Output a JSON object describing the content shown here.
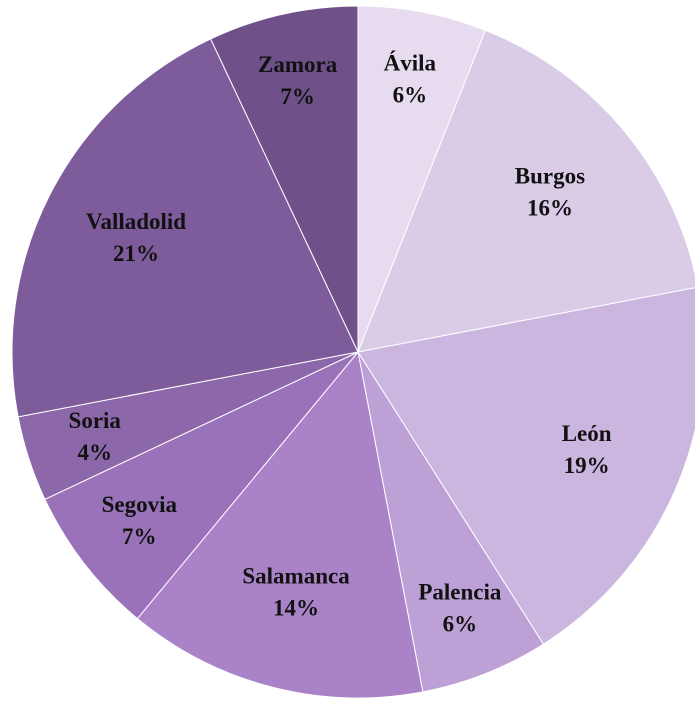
{
  "chart_data": {
    "type": "pie",
    "categories": [
      "Ávila",
      "Burgos",
      "León",
      "Palencia",
      "Salamanca",
      "Segovia",
      "Soria",
      "Valladolid",
      "Zamora"
    ],
    "values": [
      6,
      16,
      19,
      6,
      14,
      7,
      4,
      21,
      7
    ],
    "value_labels": [
      "6%",
      "16%",
      "19%",
      "6%",
      "14%",
      "7%",
      "4%",
      "21%",
      "7%"
    ],
    "colors": [
      "#e7dbef",
      "#dacbe7",
      "#cbb6df",
      "#bda0d6",
      "#a982c8",
      "#9a72b9",
      "#8c67a9",
      "#7e5b9b",
      "#6f5089"
    ]
  }
}
